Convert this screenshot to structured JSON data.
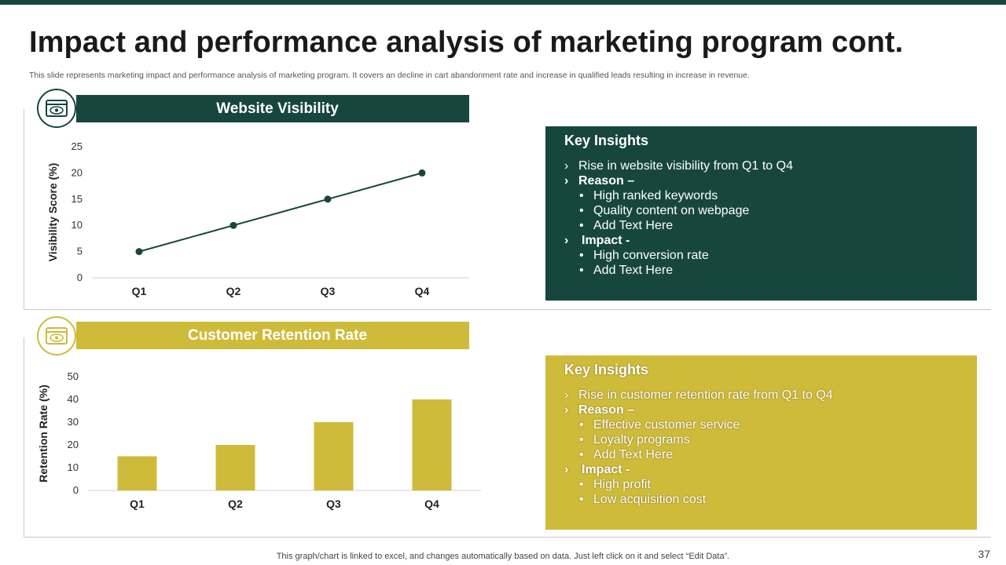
{
  "slide": {
    "title": "Impact and performance analysis of marketing program cont.",
    "subtitle": "This slide represents marketing impact and performance analysis of marketing program. It covers an decline in cart abandonment rate and increase in qualified leads resulting in increase in revenue.",
    "footer_note": "This graph/chart is linked to excel,  and changes automatically based on data. Just left click on it and select “Edit Data”.",
    "page_number": "37",
    "colors": {
      "dark_green": "#17463f",
      "olive_yellow": "#cfbb3a"
    }
  },
  "panels": [
    {
      "banner_title": "Website Visibility",
      "icon": "browser-eye-icon",
      "insights": {
        "title": "Key Insights",
        "point1": "Rise in website visibility from Q1 to Q4",
        "reason_label": "Reason –",
        "reasons": [
          "High ranked keywords",
          "Quality content on webpage",
          "Add Text Here"
        ],
        "impact_label": "Impact -",
        "impacts": [
          "High conversion rate",
          "Add Text Here"
        ]
      }
    },
    {
      "banner_title": "Customer Retention Rate",
      "icon": "browser-eye-icon",
      "insights": {
        "title": "Key Insights",
        "point1": "Rise in customer retention rate from Q1 to Q4",
        "reason_label": "Reason –",
        "reasons": [
          "Effective customer service",
          "Loyalty programs",
          "Add Text Here"
        ],
        "impact_label": "Impact -",
        "impacts": [
          "High profit",
          "Low acquisition cost"
        ]
      }
    }
  ],
  "bullets": {
    "arrow": "›",
    "dot": "•"
  },
  "chart_data": [
    {
      "type": "line",
      "title": "Website Visibility",
      "categories": [
        "Q1",
        "Q2",
        "Q3",
        "Q4"
      ],
      "values": [
        5,
        10,
        15,
        20
      ],
      "ylabel": "Visibility Score (%)",
      "xlabel": "",
      "ylim": [
        0,
        25
      ],
      "yticks": [
        0,
        5,
        10,
        15,
        20,
        25
      ],
      "color": "#17463f"
    },
    {
      "type": "bar",
      "title": "Customer Retention Rate",
      "categories": [
        "Q1",
        "Q2",
        "Q3",
        "Q4"
      ],
      "values": [
        15,
        20,
        30,
        40
      ],
      "ylabel": "Retention Rate (%)",
      "xlabel": "",
      "ylim": [
        0,
        50
      ],
      "yticks": [
        0,
        10,
        20,
        30,
        40,
        50
      ],
      "color": "#cfbb3a"
    }
  ]
}
